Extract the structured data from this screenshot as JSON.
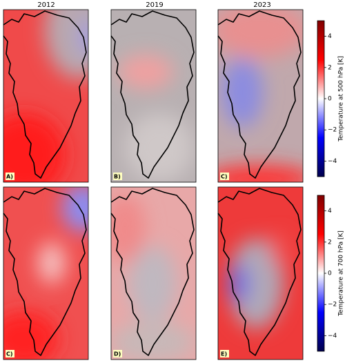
{
  "figure": {
    "columns": [
      "2012",
      "2019",
      "2023"
    ],
    "panels": [
      {
        "label": "A)"
      },
      {
        "label": "B)"
      },
      {
        "label": "C)"
      },
      {
        "label": "C)"
      },
      {
        "label": "D)"
      },
      {
        "label": "E)"
      }
    ],
    "colorbars": [
      {
        "label": "Temperature at 500 hPa [K]",
        "lim": [
          -5,
          5
        ],
        "ticks": [
          {
            "value": -4,
            "label": "−4"
          },
          {
            "value": -2,
            "label": "−2"
          },
          0,
          2,
          4
        ]
      },
      {
        "label": "Temperature at 700 hPa [K]",
        "lim": [
          -5,
          5
        ],
        "ticks": [
          {
            "value": -4,
            "label": "−4"
          },
          {
            "value": -2,
            "label": "−2"
          },
          0,
          2,
          4
        ]
      }
    ]
  }
}
